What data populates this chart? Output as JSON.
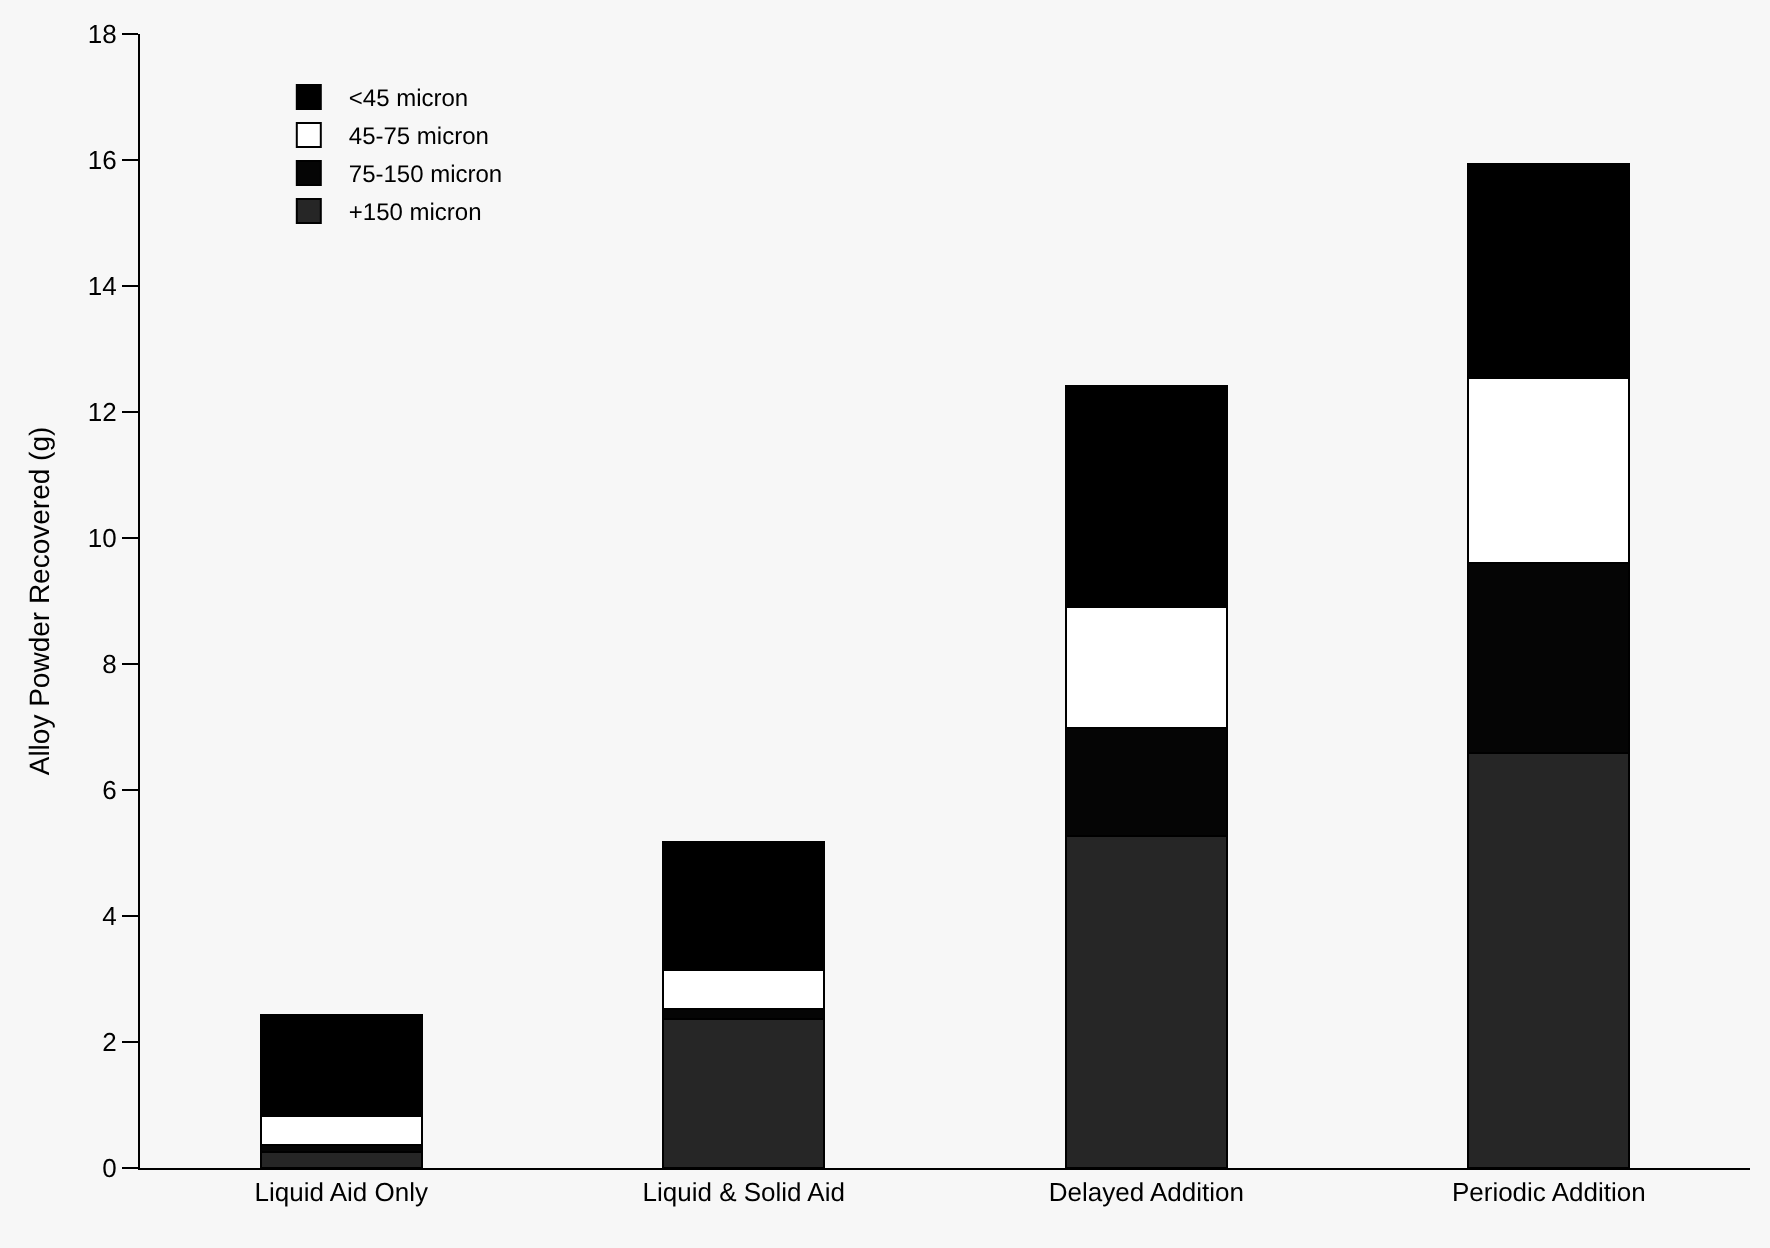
{
  "chart_data": {
    "type": "bar",
    "stacked": true,
    "ylabel": "Alloy Powder Recovered (g)",
    "categories": [
      "Liquid Aid Only",
      "Liquid & Solid Aid",
      "Delayed Addition",
      "Periodic Addition"
    ],
    "series": [
      {
        "name": "+150 micron",
        "color": "#262626",
        "values": [
          0.25,
          2.36,
          5.27,
          6.59
        ]
      },
      {
        "name": "75-150 micron",
        "color": "#050505",
        "values": [
          0.12,
          0.16,
          1.72,
          3.02
        ]
      },
      {
        "name": "45-75 micron",
        "color": "#ffffff",
        "values": [
          0.46,
          0.63,
          1.91,
          2.93
        ]
      },
      {
        "name": "<45 micron",
        "color": "#000000",
        "values": [
          1.6,
          2.03,
          3.51,
          3.4
        ]
      }
    ],
    "ylim": [
      0,
      18
    ],
    "yticks": [
      0,
      2,
      4,
      6,
      8,
      10,
      12,
      14,
      16,
      18
    ],
    "grid": false,
    "legend": "top left"
  }
}
